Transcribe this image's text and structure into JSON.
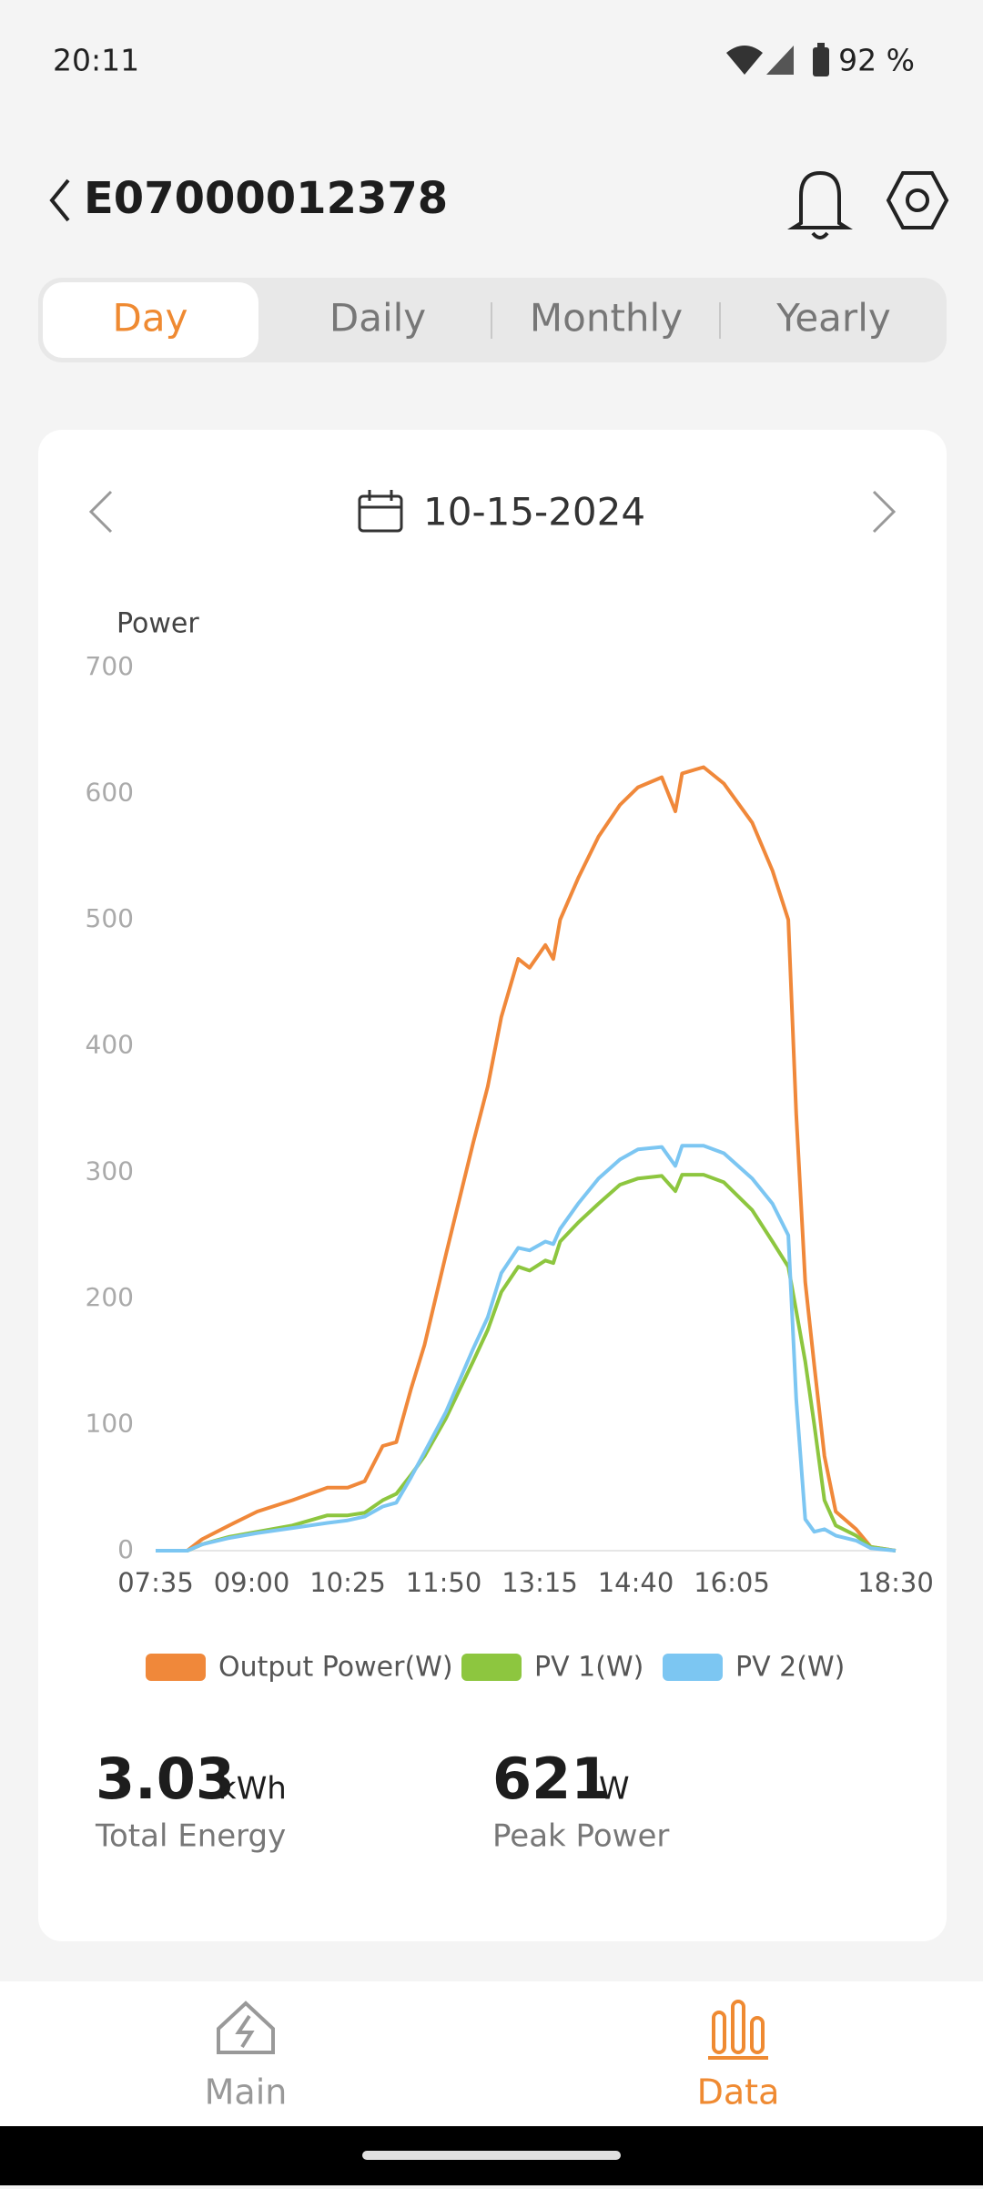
{
  "status": {
    "time": "20:11",
    "battery": "92 %"
  },
  "header": {
    "title": "E07000012378"
  },
  "tabs": [
    "Day",
    "Daily",
    "Monthly",
    "Yearly"
  ],
  "date": "10-15-2024",
  "chart_data": {
    "type": "line",
    "y_label": "Power",
    "x": [
      455,
      483,
      496,
      520,
      545,
      576,
      607,
      625,
      640,
      656,
      668,
      681,
      693,
      712,
      736,
      749,
      761,
      776,
      786,
      800,
      807,
      813,
      829,
      847,
      866,
      882,
      903,
      915,
      921,
      940,
      958,
      983,
      1001,
      1015,
      1022,
      1030,
      1038,
      1047,
      1057,
      1075,
      1088,
      1110
    ],
    "series": [
      {
        "name": "Output Power(W)",
        "color": "#f0883a",
        "values": [
          0,
          0,
          9,
          20,
          31,
          40,
          50,
          50,
          55,
          83,
          86,
          128,
          163,
          235,
          323,
          368,
          423,
          469,
          462,
          480,
          469,
          500,
          533,
          566,
          591,
          605,
          613,
          586,
          616,
          621,
          608,
          577,
          539,
          500,
          346,
          213,
          147,
          75,
          31,
          17,
          3,
          0
        ]
      },
      {
        "name": "PV 1(W)",
        "color": "#8dc63f",
        "values": [
          0,
          0,
          5,
          11,
          15,
          20,
          28,
          28,
          30,
          40,
          45,
          60,
          75,
          105,
          150,
          175,
          205,
          225,
          222,
          230,
          228,
          245,
          260,
          275,
          290,
          295,
          297,
          285,
          298,
          298,
          292,
          270,
          245,
          225,
          190,
          150,
          100,
          40,
          20,
          12,
          3,
          0
        ]
      },
      {
        "name": "PV 2(W)",
        "color": "#7cc6f2",
        "values": [
          0,
          0,
          5,
          10,
          14,
          18,
          22,
          24,
          27,
          35,
          38,
          58,
          78,
          110,
          160,
          185,
          220,
          240,
          238,
          245,
          243,
          255,
          275,
          295,
          310,
          318,
          320,
          305,
          321,
          321,
          315,
          295,
          275,
          250,
          120,
          25,
          15,
          17,
          12,
          8,
          2,
          0
        ]
      }
    ],
    "xlim": [
      455,
      1110
    ],
    "xticks": [
      {
        "value": 455,
        "label": "07:35"
      },
      {
        "value": 540,
        "label": "09:00"
      },
      {
        "value": 625,
        "label": "10:25"
      },
      {
        "value": 710,
        "label": "11:50"
      },
      {
        "value": 795,
        "label": "13:15"
      },
      {
        "value": 880,
        "label": "14:40"
      },
      {
        "value": 965,
        "label": "16:05"
      },
      {
        "value": 1110,
        "label": "18:30"
      }
    ],
    "ylim": [
      0,
      700
    ],
    "yticks": [
      0,
      100,
      200,
      300,
      400,
      500,
      600,
      700
    ],
    "grid": false
  },
  "stats": [
    {
      "value": 3.03,
      "unit": "kWh",
      "label": "Total Energy"
    },
    {
      "value": 621,
      "unit": "W",
      "label": "Peak Power"
    }
  ],
  "nav": [
    "Main",
    "Data"
  ]
}
